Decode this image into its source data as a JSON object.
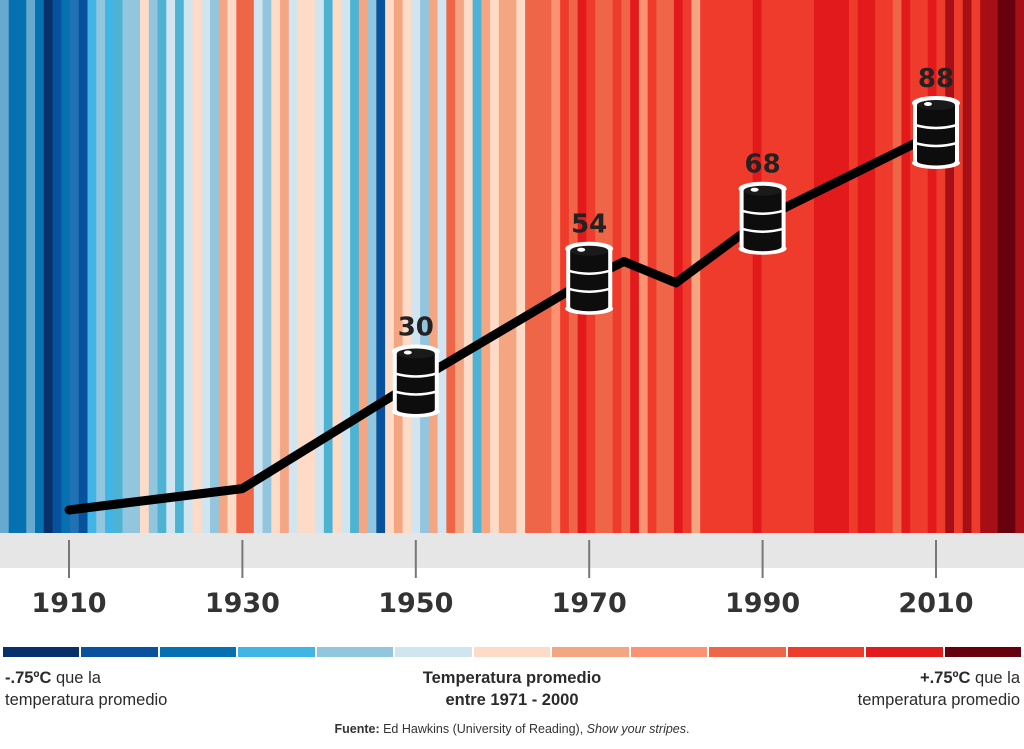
{
  "chart_data": {
    "type": "line",
    "stripe_colors": [
      "#67a9cf",
      "#0571b0",
      "#0571b0",
      "#67a9cf",
      "#0571b0",
      "#08306b",
      "#08519c",
      "#0571b0",
      "#2171b5",
      "#08519c",
      "#41b6e6",
      "#92c5de",
      "#41b6e6",
      "#4eb3d3",
      "#92c5de",
      "#92c5de",
      "#fddbc7",
      "#92c5de",
      "#4eb3d3",
      "#d1e5f0",
      "#4eb3d3",
      "#d1e5f0",
      "#fddbc7",
      "#d1e5f0",
      "#92c5de",
      "#f4a582",
      "#fddbc7",
      "#ef6548",
      "#ef6548",
      "#d1e5f0",
      "#92c5de",
      "#fddbc7",
      "#f4a582",
      "#d1e5f0",
      "#fddbc7",
      "#fddbc7",
      "#d1e5f0",
      "#4eb3d3",
      "#fddbc7",
      "#d1e5f0",
      "#4eb3d3",
      "#f4a582",
      "#92c5de",
      "#08519c",
      "#fddbc7",
      "#f4a582",
      "#fddbc7",
      "#d1e5f0",
      "#92c5de",
      "#f4a582",
      "#d1e5f0",
      "#ef6548",
      "#f4a582",
      "#fddbc7",
      "#4eb3d3",
      "#f4a582",
      "#fddbc7",
      "#f4a582",
      "#f4a582",
      "#fddbc7",
      "#ef6548",
      "#ef6548",
      "#ef6548",
      "#fc9272",
      "#ef3b2c",
      "#ef6548",
      "#e31a1c",
      "#ef3b2c",
      "#ef6548",
      "#ef6548",
      "#ef3b2c",
      "#ef6548",
      "#e31a1c",
      "#fc9272",
      "#ef3b2c",
      "#ef6548",
      "#ef6548",
      "#e31a1c",
      "#ef3b2c",
      "#f4a582",
      "#ef3b2c",
      "#ef3b2c",
      "#ef3b2c",
      "#ef3b2c",
      "#ef3b2c",
      "#ef3b2c",
      "#e31a1c",
      "#ef3b2c",
      "#ef3b2c",
      "#ef3b2c",
      "#ef3b2c",
      "#ef3b2c",
      "#ef3b2c",
      "#e31a1c",
      "#e31a1c",
      "#e31a1c",
      "#e31a1c",
      "#ef3b2c",
      "#e31a1c",
      "#e31a1c",
      "#ef3b2c",
      "#ef3b2c",
      "#ef6548",
      "#e31a1c",
      "#ef3b2c",
      "#ef3b2c",
      "#e31a1c",
      "#ef3b2c",
      "#a50f15",
      "#ef3b2c",
      "#a50f15",
      "#ef3b2c",
      "#a50f15",
      "#a50f15",
      "#67000d",
      "#67000d",
      "#a50f15"
    ],
    "x_ticks": [
      "1910",
      "1930",
      "1950",
      "1970",
      "1990",
      "2010"
    ],
    "x_range": [
      1903,
      2021
    ],
    "series": [
      {
        "points": [
          [
            1910,
            0
          ],
          [
            1930,
            5
          ],
          [
            1950,
            30
          ],
          [
            1970,
            54
          ],
          [
            1974,
            58
          ],
          [
            1980,
            53
          ],
          [
            1990,
            68
          ],
          [
            2010,
            88
          ]
        ]
      }
    ],
    "annotations": [
      {
        "x": 1950,
        "y": 30,
        "label": "30"
      },
      {
        "x": 1970,
        "y": 54,
        "label": "54"
      },
      {
        "x": 1990,
        "y": 68,
        "label": "68"
      },
      {
        "x": 2010,
        "y": 88,
        "label": "88"
      }
    ],
    "line_color": "#000000",
    "baseline_band_color": "#e6e6e6"
  },
  "colorbar": {
    "colors": [
      "#08306b",
      "#08519c",
      "#0571b0",
      "#41b6e6",
      "#92c5de",
      "#d1e5f0",
      "#fddbc7",
      "#f4a582",
      "#fc9272",
      "#ef6548",
      "#ef3b2c",
      "#e31a1c",
      "#67000d"
    ]
  },
  "legend": {
    "left_value": "-.75ºC",
    "left_text": " que la",
    "left_line2": "temperatura promedio",
    "mid_line1": "Temperatura promedio",
    "mid_line2": "entre 1971 - 2000",
    "right_value": "+.75ºC",
    "right_text": " que la",
    "right_line2": "temperatura promedio"
  },
  "source": {
    "label": "Fuente:",
    "text": " Ed Hawkins (University of Reading), ",
    "title": "Show your stripes",
    "end": "."
  }
}
